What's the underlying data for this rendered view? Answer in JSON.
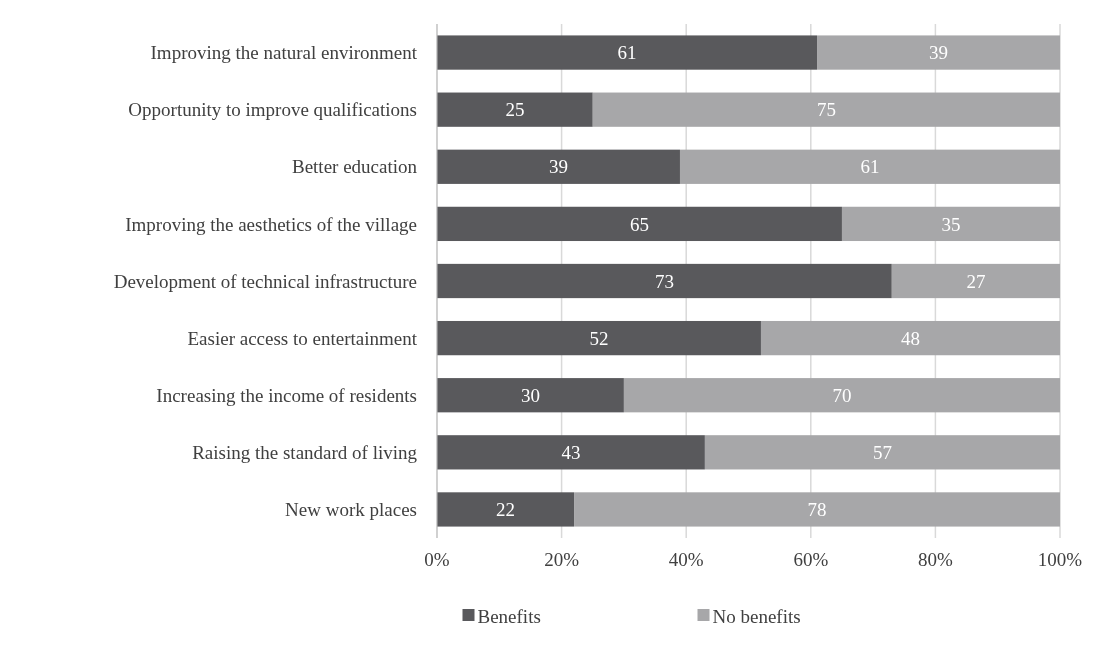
{
  "chart_data": {
    "type": "bar",
    "orientation": "horizontal",
    "stacked": true,
    "categories": [
      "Improving the natural environment",
      "Opportunity to improve qualifications",
      "Better education",
      "Improving the aesthetics of the village",
      "Development of technical infrastructure",
      "Easier access to entertainment",
      "Increasing the income of residents",
      "Raising the standard of living",
      "New work places"
    ],
    "series": [
      {
        "name": "Benefits",
        "color": "#59595c",
        "values": [
          61,
          25,
          39,
          65,
          73,
          52,
          30,
          43,
          22
        ]
      },
      {
        "name": "No benefits",
        "color": "#a7a7a9",
        "values": [
          39,
          75,
          61,
          35,
          27,
          48,
          70,
          57,
          78
        ]
      }
    ],
    "xlim": [
      0,
      100
    ],
    "xticks": [
      {
        "value": 0,
        "label": "0%"
      },
      {
        "value": 20,
        "label": "20%"
      },
      {
        "value": 40,
        "label": "40%"
      },
      {
        "value": 60,
        "label": "60%"
      },
      {
        "value": 80,
        "label": "80%"
      },
      {
        "value": 100,
        "label": "100%"
      }
    ],
    "grid": "x",
    "legend": "bottom",
    "data_labels": true
  }
}
